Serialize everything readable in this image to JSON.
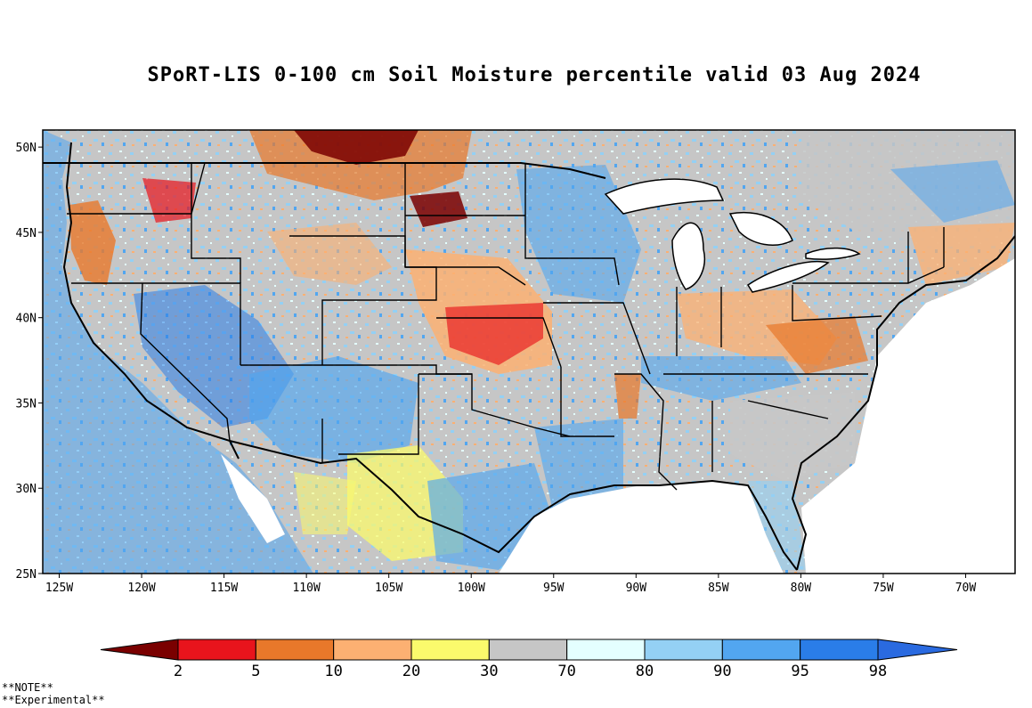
{
  "title": "SPoRT-LIS 0-100 cm Soil Moisture percentile valid 03 Aug 2024",
  "map": {
    "lon_range": [
      -126,
      -67
    ],
    "lat_range": [
      25,
      51
    ],
    "lat_ticks": [
      {
        "value": 50,
        "label": "50N"
      },
      {
        "value": 45,
        "label": "45N"
      },
      {
        "value": 40,
        "label": "40N"
      },
      {
        "value": 35,
        "label": "35N"
      },
      {
        "value": 30,
        "label": "30N"
      },
      {
        "value": 25,
        "label": "25N"
      }
    ],
    "lon_ticks": [
      {
        "value": -125,
        "label": "125W"
      },
      {
        "value": -120,
        "label": "120W"
      },
      {
        "value": -115,
        "label": "115W"
      },
      {
        "value": -110,
        "label": "110W"
      },
      {
        "value": -105,
        "label": "105W"
      },
      {
        "value": -100,
        "label": "100W"
      },
      {
        "value": -95,
        "label": "95W"
      },
      {
        "value": -90,
        "label": "90W"
      },
      {
        "value": -85,
        "label": "85W"
      },
      {
        "value": -80,
        "label": "80W"
      },
      {
        "value": -75,
        "label": "75W"
      },
      {
        "value": -70,
        "label": "70W"
      }
    ]
  },
  "legend": {
    "bins": [
      {
        "color": "#7a0000",
        "label": ""
      },
      {
        "color": "#e8141c",
        "label": "2"
      },
      {
        "color": "#e8782a",
        "label": "5"
      },
      {
        "color": "#fcb072",
        "label": "10"
      },
      {
        "color": "#fbfa6c",
        "label": "20"
      },
      {
        "color": "#c6c6c6",
        "label": "30"
      },
      {
        "color": "#e4ffff",
        "label": "70"
      },
      {
        "color": "#94d0f4",
        "label": "80"
      },
      {
        "color": "#52a6f0",
        "label": "90"
      },
      {
        "color": "#2a7de8",
        "label": "95"
      },
      {
        "color": "#2a6ae0",
        "label": "98"
      }
    ]
  },
  "notes": {
    "line1": "**NOTE**",
    "line2": "**Experimental**"
  }
}
